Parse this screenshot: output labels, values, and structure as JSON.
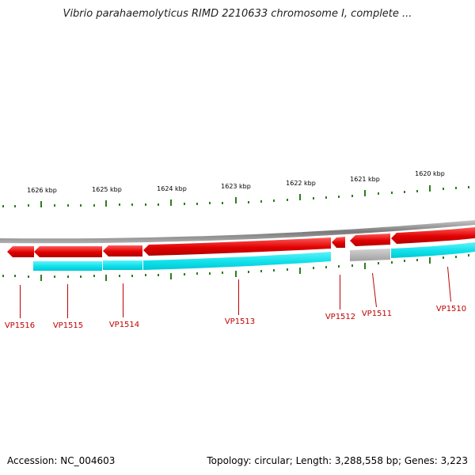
{
  "title": "Vibrio parahaemolyticus RIMD 2210633 chromosome I, complete ...",
  "accession": "Accession: NC_004603",
  "summary": "Topology: circular; Length: 3,288,558 bp; Genes: 3,223",
  "scale": {
    "labels": [
      "1626 kbp",
      "1625 kbp",
      "1624 kbp",
      "1623 kbp",
      "1622 kbp",
      "1621 kbp",
      "1620 kbp"
    ]
  },
  "genes": [
    {
      "label": "VP1516"
    },
    {
      "label": "VP1515"
    },
    {
      "label": "VP1514"
    },
    {
      "label": "VP1513"
    },
    {
      "label": "VP1512"
    },
    {
      "label": "VP1511"
    },
    {
      "label": "VP1510"
    }
  ],
  "colors": {
    "gene": "#e00000",
    "cds": "#00e5ee",
    "pseudo_gene": "#a8a8a8",
    "backbone": "#909090",
    "tick": "#2e7d1e",
    "label": "#c00000"
  }
}
